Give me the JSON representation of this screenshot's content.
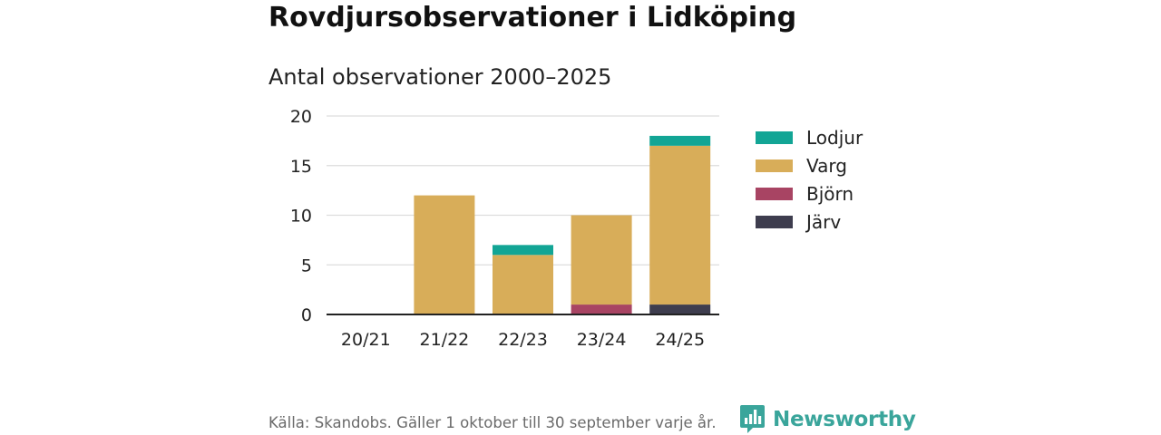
{
  "header": {
    "title": "Rovdjursobservationer i Lidköping",
    "subtitle": "Antal observationer 2000–2025"
  },
  "footer": {
    "source": "Källa: Skandobs. Gäller 1 oktober till 30 september varje år.",
    "brand": "Newsworthy"
  },
  "colors": {
    "Lodjur": "#12a595",
    "Varg": "#d8ad59",
    "Björn": "#a84463",
    "Järv": "#3e3d4e"
  },
  "chart_data": {
    "type": "bar",
    "stacked": true,
    "title": "Rovdjursobservationer i Lidköping",
    "subtitle": "Antal observationer 2000–2025",
    "xlabel": "",
    "ylabel": "",
    "ylim": [
      0,
      20
    ],
    "yticks": [
      0,
      5,
      10,
      15,
      20
    ],
    "grid": true,
    "legend_position": "right",
    "categories": [
      "20/21",
      "21/22",
      "22/23",
      "23/24",
      "24/25"
    ],
    "series": [
      {
        "name": "Järv",
        "values": [
          0,
          0,
          0,
          0,
          1
        ]
      },
      {
        "name": "Björn",
        "values": [
          0,
          0,
          0,
          1,
          0
        ]
      },
      {
        "name": "Varg",
        "values": [
          0,
          12,
          6,
          9,
          16
        ]
      },
      {
        "name": "Lodjur",
        "values": [
          0,
          0,
          1,
          0,
          1
        ]
      }
    ],
    "legend": [
      "Lodjur",
      "Varg",
      "Björn",
      "Järv"
    ]
  }
}
